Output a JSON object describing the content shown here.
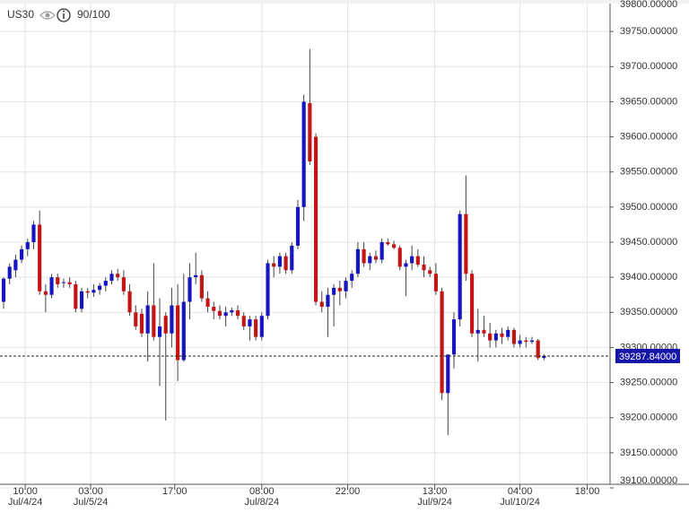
{
  "chart_data": {
    "type": "candlestick",
    "symbol": "US30",
    "quality": "90/100",
    "up_color": "#1515c4",
    "down_color": "#c41515",
    "grid": true,
    "current_price": 39287.84,
    "current_price_label": "39287.84000",
    "ylim": [
      39100,
      39800
    ],
    "yticks": [
      {
        "value": 39100,
        "label": "39100.00000"
      },
      {
        "value": 39150,
        "label": "39150.00000"
      },
      {
        "value": 39200,
        "label": "39200.00000"
      },
      {
        "value": 39250,
        "label": "39250.00000"
      },
      {
        "value": 39300,
        "label": "39300.00000"
      },
      {
        "value": 39350,
        "label": "39350.00000"
      },
      {
        "value": 39400,
        "label": "39400.00000"
      },
      {
        "value": 39450,
        "label": "39450.00000"
      },
      {
        "value": 39500,
        "label": "39500.00000"
      },
      {
        "value": 39550,
        "label": "39550.00000"
      },
      {
        "value": 39600,
        "label": "39600.00000"
      },
      {
        "value": 39650,
        "label": "39650.00000"
      },
      {
        "value": 39700,
        "label": "39700.00000"
      },
      {
        "value": 39750,
        "label": "39750.00000"
      },
      {
        "value": 39800,
        "label": "39800.00000"
      }
    ],
    "xlim": [
      -0.6,
      101
    ],
    "xticks": [
      {
        "value": 3.6,
        "label": "10:00"
      },
      {
        "value": 14.5,
        "label": "03:00"
      },
      {
        "value": 28.5,
        "label": "17:00"
      },
      {
        "value": 43,
        "label": "08:00"
      },
      {
        "value": 57.3,
        "label": "22:00"
      },
      {
        "value": 71.8,
        "label": "13:00"
      },
      {
        "value": 86,
        "label": "04:00"
      },
      {
        "value": 97.2,
        "label": "18:00"
      }
    ],
    "date_labels": [
      {
        "value": 3.6,
        "label": "Jul/4/24"
      },
      {
        "value": 14.5,
        "label": "Jul/5/24"
      },
      {
        "value": 43,
        "label": "Jul/8/24"
      },
      {
        "value": 71.8,
        "label": "Jul/9/24"
      },
      {
        "value": 86,
        "label": "Jul/10/24"
      }
    ],
    "open": [
      39365,
      39398,
      39410,
      39425,
      39440,
      39450,
      39475,
      39380,
      39375,
      39400,
      39392,
      39393,
      39390,
      39355,
      39380,
      39378,
      39382,
      39388,
      39395,
      39405,
      39400,
      39380,
      39350,
      39348,
      39320,
      39360,
      39315,
      39345,
      39320,
      39360,
      39282,
      39365,
      39400,
      39403,
      39370,
      39358,
      39352,
      39345,
      39350,
      39353,
      39345,
      39330,
      39340,
      39315,
      39345,
      39420,
      39415,
      39430,
      39410,
      39445,
      39500,
      39648,
      39600,
      39365,
      39358,
      39375,
      39385,
      39380,
      39395,
      39405,
      39440,
      39420,
      39430,
      39425,
      39450,
      39447,
      39442,
      39415,
      39420,
      39430,
      39418,
      39410,
      39405,
      39380,
      39235,
      39290,
      39340,
      39490,
      39405,
      39320,
      39325,
      39320,
      39310,
      39320,
      39315,
      39325,
      39305,
      39310,
      39308,
      39310,
      39285
    ],
    "high": [
      39400,
      39420,
      39432,
      39445,
      39455,
      39480,
      39495,
      39390,
      39405,
      39405,
      39398,
      39400,
      39395,
      39385,
      39385,
      39390,
      39392,
      39400,
      39410,
      39412,
      39410,
      39390,
      39360,
      39355,
      39380,
      39420,
      39370,
      39350,
      39385,
      39390,
      39405,
      39420,
      39435,
      39410,
      39380,
      39365,
      39360,
      39358,
      39357,
      39360,
      39350,
      39345,
      39345,
      39350,
      39425,
      39430,
      39435,
      39435,
      39450,
      39510,
      39660,
      39725,
      39605,
      39380,
      39385,
      39390,
      39395,
      39400,
      39410,
      39450,
      39450,
      39435,
      39438,
      39455,
      39455,
      39452,
      39445,
      39425,
      39445,
      39440,
      39430,
      39415,
      39420,
      39385,
      39285,
      39350,
      39495,
      39545,
      39410,
      39355,
      39345,
      39335,
      39325,
      39328,
      39330,
      39328,
      39318,
      39315,
      39315,
      39312,
      39290
    ],
    "low": [
      39355,
      39390,
      39400,
      39420,
      39430,
      39440,
      39375,
      39350,
      39370,
      39385,
      39385,
      39385,
      39350,
      39350,
      39370,
      39372,
      39375,
      39380,
      39390,
      39395,
      39375,
      39345,
      39325,
      39315,
      39280,
      39310,
      39245,
      39196,
      39300,
      39252,
      39280,
      39340,
      39390,
      39365,
      39350,
      39340,
      39340,
      39330,
      39345,
      39340,
      39325,
      39310,
      39310,
      39310,
      39340,
      39400,
      39405,
      39405,
      39405,
      39440,
      39480,
      39560,
      39360,
      39350,
      39315,
      39330,
      39360,
      39370,
      39385,
      39400,
      39415,
      39410,
      39420,
      39420,
      39445,
      39440,
      39410,
      39373,
      39410,
      39415,
      39400,
      39400,
      39375,
      39225,
      39175,
      39270,
      39330,
      39395,
      39315,
      39280,
      39315,
      39300,
      39300,
      39305,
      39310,
      39300,
      39300,
      39300,
      39305,
      39282,
      39282
    ],
    "close": [
      39398,
      39415,
      39425,
      39440,
      39450,
      39475,
      39380,
      39375,
      39400,
      39390,
      39393,
      39390,
      39355,
      39380,
      39378,
      39382,
      39388,
      39395,
      39405,
      39400,
      39380,
      39350,
      39330,
      39320,
      39360,
      39315,
      39330,
      39320,
      39360,
      39282,
      39365,
      39400,
      39403,
      39370,
      39358,
      39352,
      39345,
      39350,
      39353,
      39345,
      39330,
      39340,
      39315,
      39345,
      39420,
      39415,
      39430,
      39410,
      39445,
      39500,
      39650,
      39565,
      39365,
      39358,
      39375,
      39385,
      39380,
      39395,
      39405,
      39440,
      39420,
      39430,
      39425,
      39450,
      39447,
      39442,
      39415,
      39420,
      39430,
      39418,
      39410,
      39405,
      39380,
      39235,
      39290,
      39340,
      39490,
      39405,
      39320,
      39325,
      39320,
      39310,
      39320,
      39315,
      39325,
      39305,
      39310,
      39308,
      39310,
      39285,
      39288
    ]
  }
}
